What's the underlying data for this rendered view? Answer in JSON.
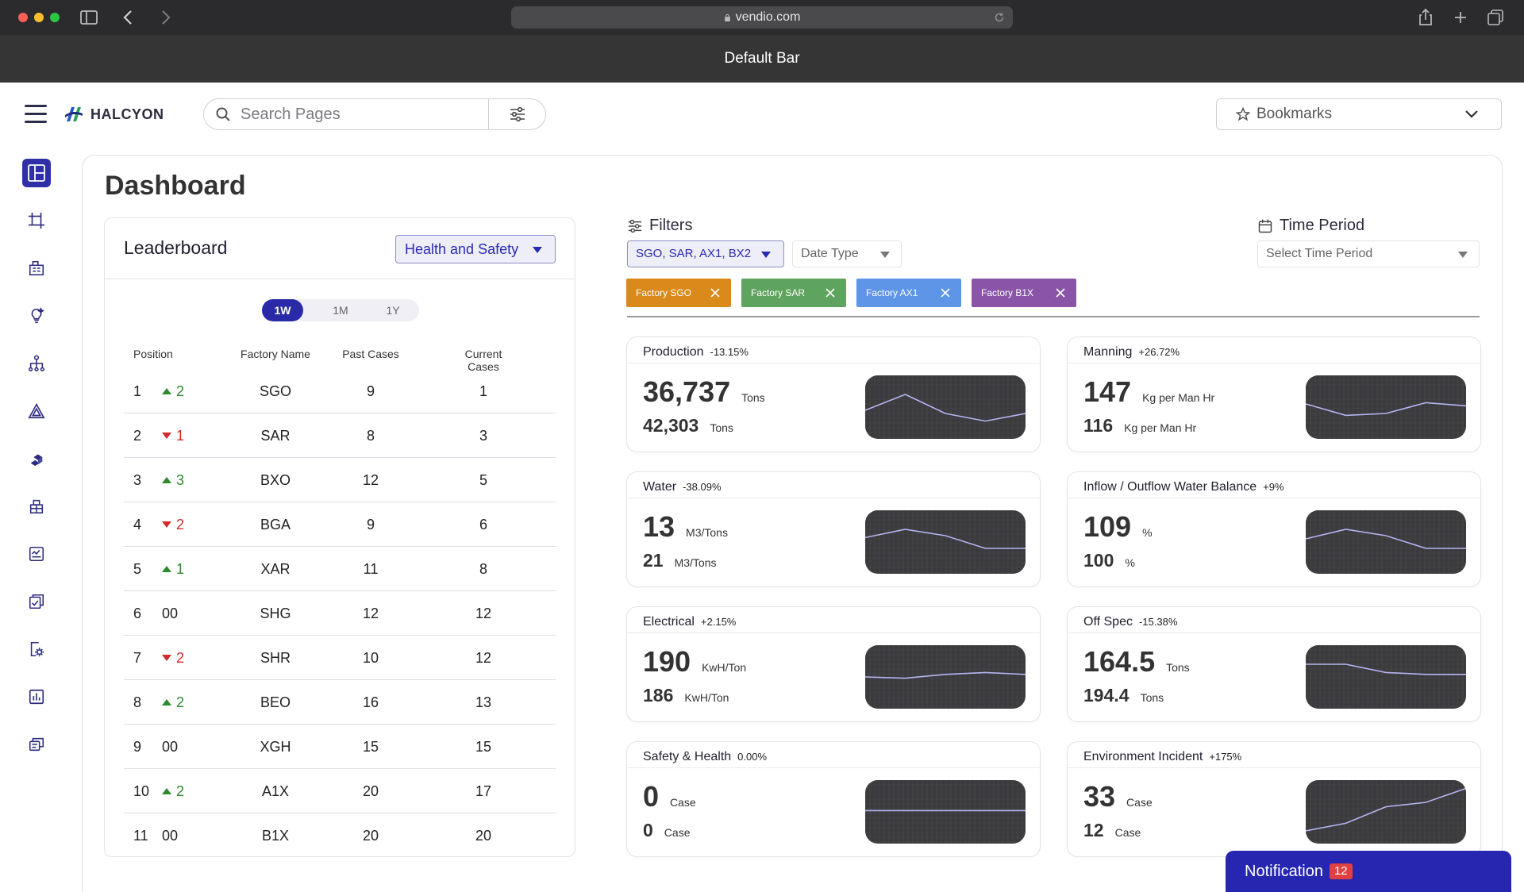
{
  "browser": {
    "url": "vendio.com"
  },
  "default_bar": {
    "title": "Default Bar"
  },
  "header": {
    "logo_text": "HALCYON",
    "search_placeholder": "Search Pages",
    "bookmarks_label": "Bookmarks"
  },
  "sidebar": {
    "items": [
      "dashboard-icon",
      "crop-icon",
      "building-icon",
      "lightbulb-icon",
      "hierarchy-icon",
      "warning-triangle-icon",
      "cubes-icon",
      "factory-icon",
      "report-icon",
      "checklist-icon",
      "settings-doc-icon",
      "bar-chart-icon",
      "messages-icon"
    ]
  },
  "page": {
    "title": "Dashboard"
  },
  "leaderboard": {
    "title": "Leaderboard",
    "category": "Health and Safety",
    "periods": [
      "1W",
      "1M",
      "1Y"
    ],
    "active_period": "1W",
    "columns": [
      "Position",
      "Factory Name",
      "Past Cases",
      "Current Cases"
    ],
    "rows": [
      {
        "pos": "1",
        "dir": "up",
        "change": "2",
        "name": "SGO",
        "past": "9",
        "current": "1"
      },
      {
        "pos": "2",
        "dir": "down",
        "change": "1",
        "name": "SAR",
        "past": "8",
        "current": "3"
      },
      {
        "pos": "3",
        "dir": "up",
        "change": "3",
        "name": "BXO",
        "past": "12",
        "current": "5"
      },
      {
        "pos": "4",
        "dir": "down",
        "change": "2",
        "name": "BGA",
        "past": "9",
        "current": "6"
      },
      {
        "pos": "5",
        "dir": "up",
        "change": "1",
        "name": "XAR",
        "past": "11",
        "current": "8"
      },
      {
        "pos": "6",
        "dir": "none",
        "change": "00",
        "name": "SHG",
        "past": "12",
        "current": "12"
      },
      {
        "pos": "7",
        "dir": "down",
        "change": "2",
        "name": "SHR",
        "past": "10",
        "current": "12"
      },
      {
        "pos": "8",
        "dir": "up",
        "change": "2",
        "name": "BEO",
        "past": "16",
        "current": "13"
      },
      {
        "pos": "9",
        "dir": "none",
        "change": "00",
        "name": "XGH",
        "past": "15",
        "current": "15"
      },
      {
        "pos": "10",
        "dir": "up",
        "change": "2",
        "name": "A1X",
        "past": "20",
        "current": "17"
      },
      {
        "pos": "11",
        "dir": "none",
        "change": "00",
        "name": "B1X",
        "past": "20",
        "current": "20"
      }
    ]
  },
  "filters": {
    "label": "Filters",
    "factory_select": "SGO, SAR, AX1, BX2",
    "date_type": "Date Type",
    "time_label": "Time Period",
    "time_placeholder": "Select Time Period",
    "chips": [
      {
        "label": "Factory SGO",
        "color": "#d98a1a"
      },
      {
        "label": "Factory SAR",
        "color": "#5ea35e"
      },
      {
        "label": "Factory AX1",
        "color": "#5e95e6"
      },
      {
        "label": "Factory B1X",
        "color": "#8a55a8"
      }
    ]
  },
  "metrics": [
    {
      "title": "Production",
      "pct": "-13.15%",
      "big": "36,737",
      "big_unit": "Tons",
      "small": "42,303",
      "small_unit": "Tons",
      "trend": [
        0.55,
        0.3,
        0.6,
        0.72,
        0.6
      ]
    },
    {
      "title": "Manning",
      "pct": "+26.72%",
      "big": "147",
      "big_unit": "Kg per Man Hr",
      "small": "116",
      "small_unit": "Kg per Man Hr",
      "trend": [
        0.45,
        0.63,
        0.6,
        0.43,
        0.48
      ]
    },
    {
      "title": "Water",
      "pct": "-38.09%",
      "big": "13",
      "big_unit": "M3/Tons",
      "small": "21",
      "small_unit": "M3/Tons",
      "trend": [
        0.43,
        0.3,
        0.4,
        0.6,
        0.6
      ]
    },
    {
      "title": "Inflow / Outflow Water Balance",
      "pct": "+9%",
      "big": "109",
      "big_unit": "%",
      "small": "100",
      "small_unit": "%",
      "trend": [
        0.45,
        0.3,
        0.4,
        0.6,
        0.6
      ]
    },
    {
      "title": "Electrical",
      "pct": "+2.15%",
      "big": "190",
      "big_unit": "KwH/Ton",
      "small": "186",
      "small_unit": "KwH/Ton",
      "trend": [
        0.5,
        0.52,
        0.46,
        0.43,
        0.46
      ]
    },
    {
      "title": "Off Spec",
      "pct": "-15.38%",
      "big": "164.5",
      "big_unit": "Tons",
      "small": "194.4",
      "small_unit": "Tons",
      "trend": [
        0.3,
        0.3,
        0.43,
        0.46,
        0.46
      ]
    },
    {
      "title": "Safety & Health",
      "pct": "0.00%",
      "big": "0",
      "big_unit": "Case",
      "small": "0",
      "small_unit": "Case",
      "trend": [
        0.48,
        0.48,
        0.48,
        0.48,
        0.48
      ]
    },
    {
      "title": "Environment Incident",
      "pct": "+175%",
      "big": "33",
      "big_unit": "Case",
      "small": "12",
      "small_unit": "Case",
      "trend": [
        0.8,
        0.68,
        0.42,
        0.35,
        0.13
      ]
    }
  ],
  "notification": {
    "label": "Notification",
    "count": "12"
  }
}
